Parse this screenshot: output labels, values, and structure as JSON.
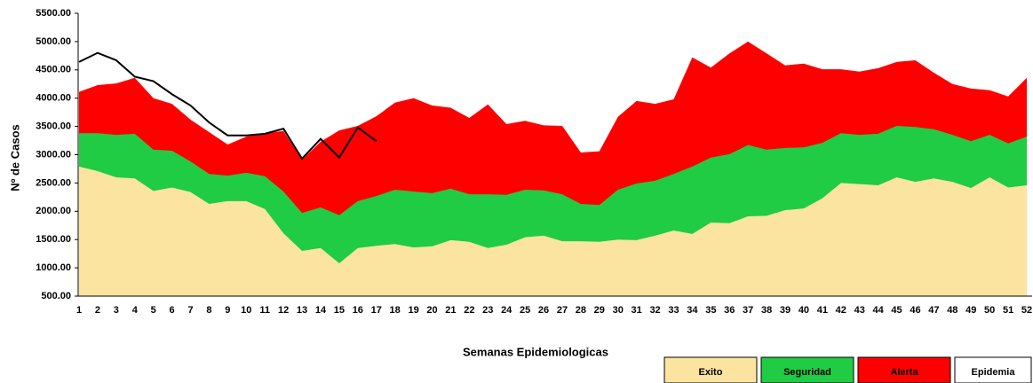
{
  "chart_data": {
    "type": "area",
    "x_label": "Semanas Epidemiologicas",
    "y_label": "Nº de Casos",
    "categories": [
      "1",
      "2",
      "3",
      "4",
      "5",
      "6",
      "7",
      "8",
      "9",
      "10",
      "11",
      "12",
      "13",
      "14",
      "15",
      "16",
      "17",
      "18",
      "19",
      "20",
      "21",
      "22",
      "23",
      "24",
      "25",
      "26",
      "27",
      "28",
      "29",
      "30",
      "31",
      "32",
      "33",
      "34",
      "35",
      "36",
      "37",
      "38",
      "39",
      "40",
      "41",
      "42",
      "43",
      "44",
      "45",
      "46",
      "47",
      "48",
      "49",
      "50",
      "51",
      "52"
    ],
    "ylim": [
      500,
      5500
    ],
    "yticks": [
      {
        "value": 500,
        "label": "500.00"
      },
      {
        "value": 1000,
        "label": "1000.00"
      },
      {
        "value": 1500,
        "label": "1500.00"
      },
      {
        "value": 2000,
        "label": "2000.00"
      },
      {
        "value": 2500,
        "label": "2500.00"
      },
      {
        "value": 3000,
        "label": "3000.00"
      },
      {
        "value": 3500,
        "label": "3500.00"
      },
      {
        "value": 4000,
        "label": "4000.00"
      },
      {
        "value": 4500,
        "label": "4500.00"
      },
      {
        "value": 5000,
        "label": "5000.00"
      },
      {
        "value": 5500,
        "label": "5500.00"
      }
    ],
    "series": [
      {
        "name": "Exito",
        "type": "area",
        "color": "#fbe3a0",
        "values": [
          2790,
          2710,
          2600,
          2580,
          2360,
          2420,
          2340,
          2130,
          2180,
          2180,
          2040,
          1610,
          1300,
          1350,
          1080,
          1350,
          1390,
          1420,
          1360,
          1380,
          1490,
          1460,
          1350,
          1410,
          1540,
          1570,
          1470,
          1470,
          1460,
          1500,
          1490,
          1570,
          1660,
          1600,
          1800,
          1790,
          1910,
          1920,
          2020,
          2050,
          2230,
          2500,
          2480,
          2460,
          2600,
          2520,
          2580,
          2520,
          2410,
          2600,
          2420,
          2460
        ]
      },
      {
        "name": "Seguridad",
        "type": "area",
        "color": "#1fcc44",
        "values": [
          3380,
          3380,
          3350,
          3370,
          3090,
          3070,
          2880,
          2660,
          2630,
          2680,
          2620,
          2350,
          1970,
          2070,
          1930,
          2180,
          2270,
          2380,
          2350,
          2320,
          2400,
          2300,
          2300,
          2290,
          2380,
          2370,
          2300,
          2130,
          2110,
          2380,
          2490,
          2540,
          2660,
          2790,
          2950,
          3010,
          3170,
          3090,
          3120,
          3130,
          3210,
          3380,
          3350,
          3370,
          3510,
          3490,
          3450,
          3350,
          3240,
          3350,
          3200,
          3320
        ]
      },
      {
        "name": "Alerta",
        "type": "area",
        "color": "#ff0000",
        "values": [
          4110,
          4230,
          4260,
          4360,
          4000,
          3900,
          3620,
          3400,
          3180,
          3320,
          3380,
          3420,
          2910,
          3230,
          3430,
          3510,
          3680,
          3920,
          4000,
          3870,
          3830,
          3650,
          3890,
          3540,
          3600,
          3520,
          3510,
          3040,
          3060,
          3670,
          3950,
          3900,
          3980,
          4720,
          4540,
          4790,
          5000,
          4790,
          4580,
          4610,
          4510,
          4510,
          4470,
          4530,
          4640,
          4670,
          4450,
          4250,
          4170,
          4140,
          4030,
          4360
        ]
      },
      {
        "name": "Epidemia",
        "type": "line",
        "color": "#000000",
        "values": [
          4640,
          4800,
          4670,
          4380,
          4300,
          4070,
          3870,
          3570,
          3340,
          3340,
          3370,
          3460,
          2930,
          3280,
          2950,
          3480,
          3240,
          null,
          null,
          null,
          null,
          null,
          null,
          null,
          null,
          null,
          null,
          null,
          null,
          null,
          null,
          null,
          null,
          null,
          null,
          null,
          null,
          null,
          null,
          null,
          null,
          null,
          null,
          null,
          null,
          null,
          null,
          null,
          null,
          null,
          null,
          null
        ]
      }
    ]
  }
}
